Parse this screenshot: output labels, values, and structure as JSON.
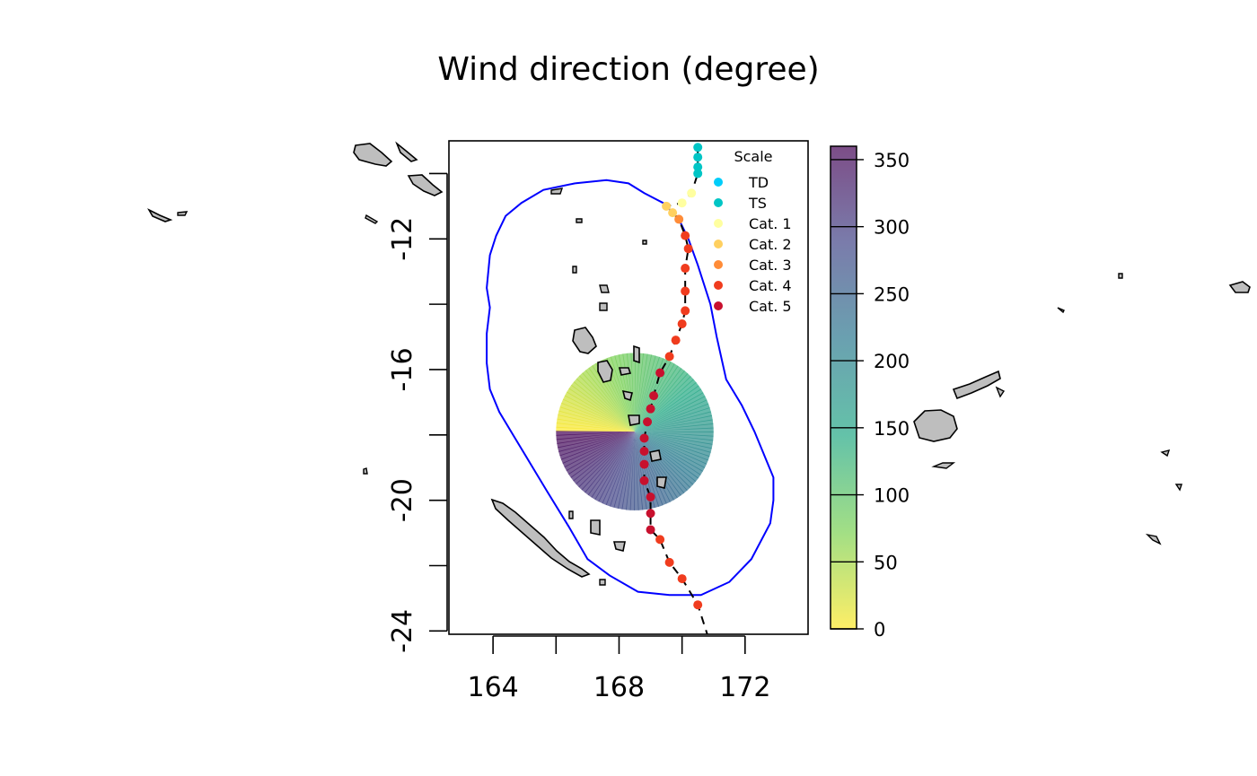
{
  "chart_data": {
    "type": "scatter",
    "title": "Wind direction (degree)",
    "xlabel": "",
    "ylabel": "",
    "xlim": [
      162.6,
      174.0
    ],
    "ylim": [
      -24.1,
      -9.0
    ],
    "x_ticks": [
      164,
      168,
      172
    ],
    "y_ticks": [
      -12,
      -16,
      -20,
      -24
    ],
    "x_tick_labels": [
      "164",
      "168",
      "172"
    ],
    "y_tick_labels": [
      "-12",
      "-16",
      "-20",
      "-24"
    ],
    "grid": false,
    "legend": {
      "title": "Scale",
      "placement": "top-right",
      "entries": [
        {
          "label": "TD",
          "color": "#00cdfa"
        },
        {
          "label": "TS",
          "color": "#00c5c5"
        },
        {
          "label": "Cat. 1",
          "color": "#ffffa0"
        },
        {
          "label": "Cat. 2",
          "color": "#ffd060"
        },
        {
          "label": "Cat. 3",
          "color": "#ff8c38"
        },
        {
          "label": "Cat. 4",
          "color": "#f03c1e"
        },
        {
          "label": "Cat. 5",
          "color": "#c8102e"
        }
      ]
    },
    "track": [
      {
        "lon": 170.5,
        "lat": -9.2,
        "cat": "TS"
      },
      {
        "lon": 170.5,
        "lat": -9.5,
        "cat": "TS"
      },
      {
        "lon": 170.5,
        "lat": -9.8,
        "cat": "TS"
      },
      {
        "lon": 170.5,
        "lat": -10.0,
        "cat": "TS"
      },
      {
        "lon": 170.3,
        "lat": -10.6,
        "cat": "Cat. 1"
      },
      {
        "lon": 170.0,
        "lat": -10.9,
        "cat": "Cat. 1"
      },
      {
        "lon": 169.5,
        "lat": -11.0,
        "cat": "Cat. 2"
      },
      {
        "lon": 169.7,
        "lat": -11.2,
        "cat": "Cat. 2"
      },
      {
        "lon": 169.9,
        "lat": -11.4,
        "cat": "Cat. 3"
      },
      {
        "lon": 170.1,
        "lat": -11.9,
        "cat": "Cat. 4"
      },
      {
        "lon": 170.2,
        "lat": -12.3,
        "cat": "Cat. 4"
      },
      {
        "lon": 170.1,
        "lat": -12.9,
        "cat": "Cat. 4"
      },
      {
        "lon": 170.1,
        "lat": -13.6,
        "cat": "Cat. 4"
      },
      {
        "lon": 170.1,
        "lat": -14.2,
        "cat": "Cat. 4"
      },
      {
        "lon": 170.0,
        "lat": -14.6,
        "cat": "Cat. 4"
      },
      {
        "lon": 169.8,
        "lat": -15.1,
        "cat": "Cat. 4"
      },
      {
        "lon": 169.6,
        "lat": -15.6,
        "cat": "Cat. 4"
      },
      {
        "lon": 169.3,
        "lat": -16.1,
        "cat": "Cat. 5"
      },
      {
        "lon": 169.1,
        "lat": -16.8,
        "cat": "Cat. 5"
      },
      {
        "lon": 169.0,
        "lat": -17.2,
        "cat": "Cat. 5"
      },
      {
        "lon": 168.9,
        "lat": -17.6,
        "cat": "Cat. 5"
      },
      {
        "lon": 168.8,
        "lat": -18.1,
        "cat": "Cat. 5"
      },
      {
        "lon": 168.8,
        "lat": -18.5,
        "cat": "Cat. 5"
      },
      {
        "lon": 168.8,
        "lat": -18.9,
        "cat": "Cat. 5"
      },
      {
        "lon": 168.8,
        "lat": -19.4,
        "cat": "Cat. 5"
      },
      {
        "lon": 169.0,
        "lat": -19.9,
        "cat": "Cat. 5"
      },
      {
        "lon": 169.0,
        "lat": -20.4,
        "cat": "Cat. 5"
      },
      {
        "lon": 169.0,
        "lat": -20.9,
        "cat": "Cat. 5"
      },
      {
        "lon": 169.3,
        "lat": -21.2,
        "cat": "Cat. 4"
      },
      {
        "lon": 169.6,
        "lat": -21.9,
        "cat": "Cat. 4"
      },
      {
        "lon": 170.0,
        "lat": -22.4,
        "cat": "Cat. 4"
      },
      {
        "lon": 170.5,
        "lat": -23.2,
        "cat": "Cat. 4"
      }
    ],
    "track_line": {
      "style": "dashed",
      "color": "#000000",
      "continues_to": {
        "lon": 170.8,
        "lat": -24.1
      }
    },
    "analysis_boundary": {
      "color": "#0000ff",
      "points": [
        [
          166.6,
          -10.3
        ],
        [
          167.6,
          -10.2
        ],
        [
          168.3,
          -10.3
        ],
        [
          168.8,
          -10.6
        ],
        [
          169.4,
          -10.9
        ],
        [
          169.9,
          -11.4
        ],
        [
          170.2,
          -12.0
        ],
        [
          170.5,
          -12.8
        ],
        [
          170.9,
          -14.0
        ],
        [
          171.1,
          -15.0
        ],
        [
          171.4,
          -16.3
        ],
        [
          171.9,
          -17.1
        ],
        [
          172.3,
          -17.9
        ],
        [
          172.6,
          -18.6
        ],
        [
          172.9,
          -19.3
        ],
        [
          172.9,
          -20.0
        ],
        [
          172.8,
          -20.7
        ],
        [
          172.2,
          -21.8
        ],
        [
          171.5,
          -22.5
        ],
        [
          170.6,
          -22.9
        ],
        [
          169.6,
          -22.9
        ],
        [
          168.6,
          -22.8
        ],
        [
          167.7,
          -22.3
        ],
        [
          167.0,
          -21.8
        ],
        [
          166.4,
          -20.8
        ],
        [
          165.7,
          -19.7
        ],
        [
          165.2,
          -18.9
        ],
        [
          164.7,
          -18.1
        ],
        [
          164.2,
          -17.3
        ],
        [
          163.9,
          -16.6
        ],
        [
          163.8,
          -15.8
        ],
        [
          163.8,
          -14.9
        ],
        [
          163.9,
          -14.1
        ],
        [
          163.8,
          -13.5
        ],
        [
          163.9,
          -12.5
        ],
        [
          164.1,
          -11.9
        ],
        [
          164.4,
          -11.3
        ],
        [
          164.9,
          -10.9
        ],
        [
          165.6,
          -10.5
        ],
        [
          166.1,
          -10.4
        ]
      ]
    },
    "wind_field": {
      "center": {
        "lon": 168.5,
        "lat": -17.9
      },
      "radius_deg": 2.5,
      "value_range": [
        0,
        360
      ],
      "colormap": [
        "#fde725",
        "#7ad151",
        "#22a884",
        "#2a788e",
        "#414487",
        "#440154"
      ],
      "opacity": 0.7
    },
    "colorbar": {
      "min": 0,
      "max": 360,
      "ticks": [
        0,
        50,
        100,
        150,
        200,
        250,
        300,
        350
      ],
      "tick_labels": [
        "0",
        "50",
        "100",
        "150",
        "200",
        "250",
        "300",
        "350"
      ]
    }
  }
}
